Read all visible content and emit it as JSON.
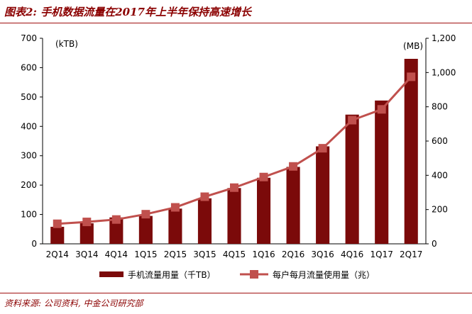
{
  "figure": {
    "title": "图表2:  手机数据流量在2017年上半年保持高速增长",
    "source": "资料来源:   公司资料, 中金公司研究部"
  },
  "colors": {
    "bar": "#7b0a0a",
    "line": "#c0504d",
    "marker": "#c0504d",
    "title": "#8b0000"
  },
  "chart_data": {
    "type": "bar",
    "categories": [
      "2Q14",
      "3Q14",
      "4Q14",
      "1Q15",
      "2Q15",
      "3Q15",
      "4Q15",
      "1Q16",
      "2Q16",
      "3Q16",
      "4Q16",
      "1Q17",
      "2Q17"
    ],
    "series": [
      {
        "name": "手机流量用量（千TB）",
        "type": "bar",
        "axis": "left",
        "values": [
          58,
          70,
          90,
          95,
          120,
          155,
          190,
          225,
          262,
          332,
          440,
          488,
          630
        ]
      },
      {
        "name": "每户每月流量使用量（兆）",
        "type": "line",
        "axis": "right",
        "values": [
          117,
          128,
          142,
          173,
          213,
          275,
          328,
          390,
          452,
          558,
          722,
          785,
          975
        ]
      }
    ],
    "y_left": {
      "unit": "(kTB)",
      "range": [
        0,
        700
      ],
      "ticks": [
        "0",
        "100",
        "200",
        "300",
        "400",
        "500",
        "600",
        "700"
      ]
    },
    "y_right": {
      "unit": "(MB)",
      "range": [
        0,
        1200
      ],
      "ticks": [
        "0",
        "200",
        "400",
        "600",
        "800",
        "1,000",
        "1,200"
      ]
    },
    "grid": false,
    "legend_position": "bottom"
  }
}
